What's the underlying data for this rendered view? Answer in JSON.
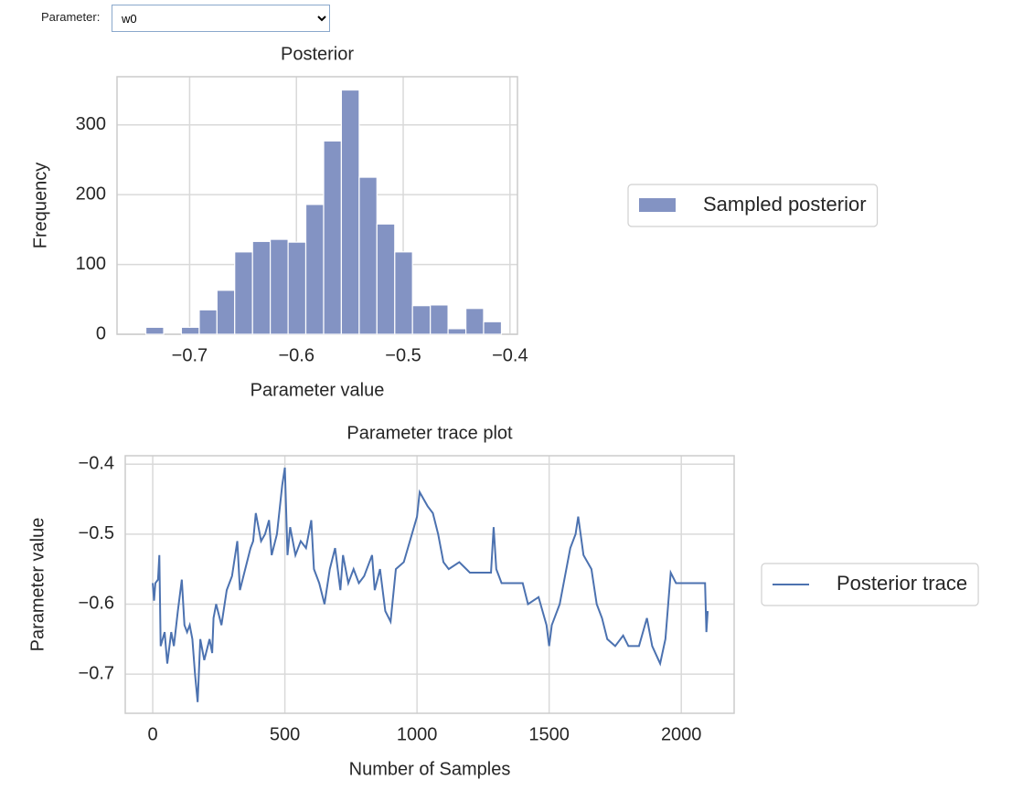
{
  "controls": {
    "label": "Parameter:",
    "selected": "w0"
  },
  "chart_data": [
    {
      "type": "histogram",
      "title": "Posterior",
      "x_label": "Parameter value",
      "y_label": "Frequency",
      "name": "Sampled posterior",
      "color": "#8393c3",
      "legend": "outside right",
      "grid": true,
      "bins": [
        -0.741,
        -0.7243,
        -0.7077,
        -0.691,
        -0.6744,
        -0.6578,
        -0.6411,
        -0.6245,
        -0.6078,
        -0.5912,
        -0.5745,
        -0.5579,
        -0.5412,
        -0.5246,
        -0.5079,
        -0.4913,
        -0.4746,
        -0.458,
        -0.4413,
        -0.4247,
        -0.408
      ],
      "counts": [
        10,
        0,
        10,
        35,
        63,
        118,
        133,
        136,
        132,
        186,
        277,
        350,
        225,
        158,
        118,
        41,
        42,
        8,
        37,
        18
      ],
      "xlim": [
        -0.768,
        -0.393
      ],
      "ylim": [
        0,
        369
      ],
      "xticks": [
        {
          "value": -0.7,
          "label": "−0.7"
        },
        {
          "value": -0.6,
          "label": "−0.6"
        },
        {
          "value": -0.5,
          "label": "−0.5"
        },
        {
          "value": -0.4,
          "label": "−0.4"
        }
      ],
      "yticks": [
        0,
        100,
        200,
        300
      ]
    },
    {
      "type": "line",
      "title": "Parameter trace plot",
      "x_label": "Number of Samples",
      "y_label": "Parameter value",
      "legend": "outside right",
      "grid": true,
      "series": [
        {
          "name": "Posterior trace",
          "color": "#4c72b0",
          "x": [
            0,
            5,
            10,
            20,
            25,
            30,
            45,
            55,
            70,
            80,
            95,
            110,
            120,
            130,
            140,
            150,
            160,
            170,
            180,
            195,
            215,
            225,
            230,
            240,
            260,
            280,
            300,
            320,
            330,
            350,
            370,
            380,
            390,
            410,
            425,
            440,
            450,
            470,
            490,
            500,
            510,
            520,
            540,
            560,
            580,
            600,
            610,
            630,
            650,
            670,
            690,
            710,
            720,
            740,
            760,
            780,
            800,
            830,
            840,
            860,
            880,
            900,
            920,
            950,
            1000,
            1010,
            1040,
            1060,
            1080,
            1100,
            1120,
            1160,
            1200,
            1280,
            1290,
            1300,
            1320,
            1400,
            1420,
            1460,
            1490,
            1500,
            1510,
            1540,
            1560,
            1580,
            1600,
            1610,
            1630,
            1660,
            1680,
            1700,
            1720,
            1750,
            1780,
            1800,
            1840,
            1870,
            1890,
            1920,
            1940,
            1960,
            1980,
            2000,
            2090,
            2095,
            2100
          ],
          "values": [
            -0.57,
            -0.595,
            -0.57,
            -0.565,
            -0.53,
            -0.66,
            -0.64,
            -0.685,
            -0.64,
            -0.66,
            -0.61,
            -0.565,
            -0.63,
            -0.64,
            -0.63,
            -0.65,
            -0.7,
            -0.74,
            -0.65,
            -0.68,
            -0.65,
            -0.67,
            -0.62,
            -0.6,
            -0.63,
            -0.58,
            -0.56,
            -0.51,
            -0.58,
            -0.55,
            -0.52,
            -0.51,
            -0.47,
            -0.51,
            -0.5,
            -0.48,
            -0.53,
            -0.5,
            -0.43,
            -0.405,
            -0.53,
            -0.49,
            -0.53,
            -0.51,
            -0.52,
            -0.48,
            -0.55,
            -0.57,
            -0.6,
            -0.55,
            -0.52,
            -0.58,
            -0.53,
            -0.57,
            -0.55,
            -0.57,
            -0.56,
            -0.53,
            -0.58,
            -0.55,
            -0.61,
            -0.625,
            -0.55,
            -0.54,
            -0.475,
            -0.44,
            -0.46,
            -0.47,
            -0.5,
            -0.54,
            -0.55,
            -0.54,
            -0.555,
            -0.555,
            -0.49,
            -0.55,
            -0.57,
            -0.57,
            -0.6,
            -0.59,
            -0.63,
            -0.66,
            -0.63,
            -0.6,
            -0.56,
            -0.52,
            -0.5,
            -0.475,
            -0.53,
            -0.55,
            -0.6,
            -0.62,
            -0.65,
            -0.66,
            -0.645,
            -0.66,
            -0.66,
            -0.62,
            -0.66,
            -0.685,
            -0.65,
            -0.555,
            -0.57,
            -0.57,
            -0.57,
            -0.64,
            -0.61
          ]
        }
      ],
      "xlim": [
        -104,
        2200
      ],
      "ylim": [
        -0.756,
        -0.388
      ],
      "xticks": [
        0,
        500,
        1000,
        1500,
        2000
      ],
      "yticks": [
        {
          "value": -0.7,
          "label": "−0.7"
        },
        {
          "value": -0.6,
          "label": "−0.6"
        },
        {
          "value": -0.5,
          "label": "−0.5"
        },
        {
          "value": -0.4,
          "label": "−0.4"
        }
      ]
    }
  ]
}
